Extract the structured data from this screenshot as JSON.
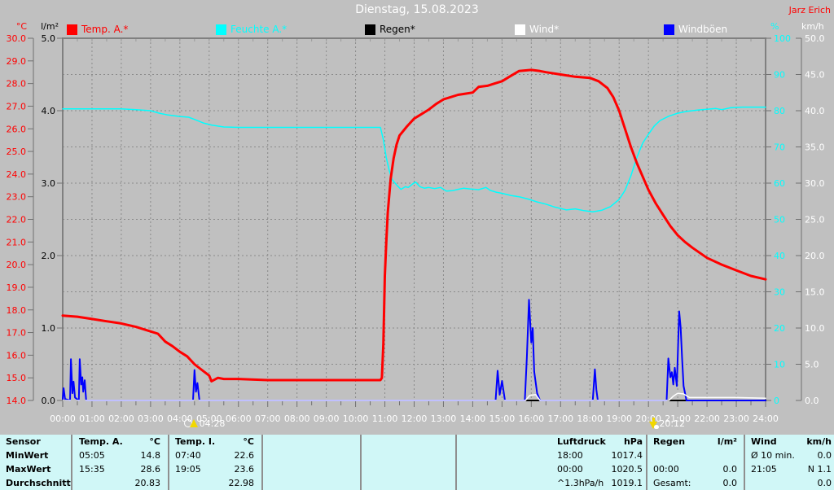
{
  "header": {
    "title": "Dienstag, 15.08.2023",
    "station": "Jarz Erich"
  },
  "legend": {
    "items": [
      {
        "label": "Temp. A.*",
        "swatch_color": "#ff0000",
        "label_color": "#ff0000"
      },
      {
        "label": "Feuchte A.*",
        "swatch_color": "#00ffff",
        "label_color": "#00ffff"
      },
      {
        "label": "Regen*",
        "swatch_color": "#000000",
        "label_color": "#000000"
      },
      {
        "label": "Wind*",
        "swatch_color": "#ffffff",
        "label_color": "#ffffff"
      },
      {
        "label": "Windböen",
        "swatch_color": "#0000ff",
        "label_color": "#ffffff"
      }
    ]
  },
  "chart_data": {
    "type": "line",
    "title": "Dienstag, 15.08.2023",
    "x_unit": "hour_of_day",
    "x_range": [
      0,
      24
    ],
    "grid": {
      "horizontal_divisions": 10,
      "vertical_step_hours": 1,
      "style": "dashed"
    },
    "legend_position": "top",
    "x_tick_labels": [
      "00:00",
      "01:00",
      "02:00",
      "03:00",
      "04:00",
      "05:00",
      "06:00",
      "07:00",
      "08:00",
      "09:00",
      "10:00",
      "11:00",
      "12:00",
      "13:00",
      "14:00",
      "15:00",
      "16:00",
      "17:00",
      "18:00",
      "19:00",
      "20:00",
      "21:00",
      "22:00",
      "23:00",
      "24:00"
    ],
    "axes": {
      "temp": {
        "unit": "°C",
        "color": "#ff0000",
        "min": 14,
        "max": 30,
        "tick_labels": [
          "30.0",
          "29.0",
          "28.0",
          "27.0",
          "26.0",
          "25.0",
          "24.0",
          "23.0",
          "22.0",
          "21.0",
          "20.0",
          "19.0",
          "18.0",
          "17.0",
          "16.0",
          "15.0",
          "14.0"
        ]
      },
      "rain": {
        "unit": "l/m²",
        "color": "#000000",
        "min": 0,
        "max": 5,
        "tick_labels": [
          "5.0",
          "4.0",
          "3.0",
          "2.0",
          "1.0",
          "0.0"
        ]
      },
      "humidity": {
        "unit": "%",
        "color": "#00ffff",
        "min": 0,
        "max": 100,
        "tick_labels": [
          "100",
          "90",
          "80",
          "70",
          "60",
          "50",
          "40",
          "30",
          "20",
          "10",
          "0"
        ]
      },
      "wind": {
        "unit": "km/h",
        "color": "#ffffff",
        "min": 0,
        "max": 50,
        "tick_labels": [
          "50.0",
          "45.0",
          "40.0",
          "35.0",
          "30.0",
          "25.0",
          "20.0",
          "15.0",
          "10.0",
          "5.0",
          "0.0"
        ]
      }
    },
    "sun": {
      "sunrise": {
        "time": "04:28",
        "hour": 4.467
      },
      "sunset": {
        "time": "20:12",
        "hour": 20.2
      }
    },
    "series": [
      {
        "name": "Temp. A.*",
        "axis": "temp",
        "unit": "°C",
        "color": "#ff0000",
        "points": [
          [
            0,
            17.75
          ],
          [
            0.5,
            17.7
          ],
          [
            1,
            17.6
          ],
          [
            1.5,
            17.5
          ],
          [
            2,
            17.4
          ],
          [
            2.5,
            17.25
          ],
          [
            3,
            17.05
          ],
          [
            3.25,
            16.95
          ],
          [
            3.5,
            16.6
          ],
          [
            3.75,
            16.4
          ],
          [
            4,
            16.15
          ],
          [
            4.25,
            15.95
          ],
          [
            4.5,
            15.6
          ],
          [
            4.75,
            15.35
          ],
          [
            5,
            15.1
          ],
          [
            5.08,
            14.85
          ],
          [
            5.3,
            15.0
          ],
          [
            5.5,
            14.95
          ],
          [
            6,
            14.95
          ],
          [
            7,
            14.9
          ],
          [
            8,
            14.9
          ],
          [
            9,
            14.9
          ],
          [
            10,
            14.9
          ],
          [
            10.5,
            14.9
          ],
          [
            10.85,
            14.9
          ],
          [
            10.9,
            15.0
          ],
          [
            10.95,
            16.5
          ],
          [
            11.0,
            19.5
          ],
          [
            11.05,
            21.0
          ],
          [
            11.1,
            22.3
          ],
          [
            11.2,
            23.8
          ],
          [
            11.3,
            24.7
          ],
          [
            11.4,
            25.3
          ],
          [
            11.5,
            25.7
          ],
          [
            11.75,
            26.1
          ],
          [
            12,
            26.45
          ],
          [
            12.25,
            26.65
          ],
          [
            12.5,
            26.85
          ],
          [
            12.75,
            27.1
          ],
          [
            13,
            27.3
          ],
          [
            13.25,
            27.4
          ],
          [
            13.5,
            27.5
          ],
          [
            13.75,
            27.55
          ],
          [
            14,
            27.6
          ],
          [
            14.2,
            27.85
          ],
          [
            14.5,
            27.9
          ],
          [
            14.75,
            28.0
          ],
          [
            15,
            28.1
          ],
          [
            15.25,
            28.3
          ],
          [
            15.58,
            28.55
          ],
          [
            16,
            28.6
          ],
          [
            16.3,
            28.55
          ],
          [
            16.5,
            28.5
          ],
          [
            17,
            28.4
          ],
          [
            17.5,
            28.3
          ],
          [
            18,
            28.25
          ],
          [
            18.3,
            28.1
          ],
          [
            18.6,
            27.8
          ],
          [
            18.8,
            27.4
          ],
          [
            19,
            26.8
          ],
          [
            19.2,
            26.0
          ],
          [
            19.4,
            25.2
          ],
          [
            19.6,
            24.5
          ],
          [
            19.8,
            23.9
          ],
          [
            20,
            23.3
          ],
          [
            20.25,
            22.7
          ],
          [
            20.5,
            22.2
          ],
          [
            20.75,
            21.7
          ],
          [
            21,
            21.3
          ],
          [
            21.25,
            21.0
          ],
          [
            21.5,
            20.75
          ],
          [
            22,
            20.3
          ],
          [
            22.5,
            20.0
          ],
          [
            23,
            19.75
          ],
          [
            23.5,
            19.5
          ],
          [
            24,
            19.35
          ]
        ]
      },
      {
        "name": "Feuchte A.*",
        "axis": "humidity",
        "unit": "%",
        "color": "#00ffff",
        "points": [
          [
            0,
            80.5
          ],
          [
            1,
            80.5
          ],
          [
            2,
            80.5
          ],
          [
            2.5,
            80.3
          ],
          [
            3,
            80
          ],
          [
            3.3,
            79.3
          ],
          [
            3.6,
            78.8
          ],
          [
            4,
            78.4
          ],
          [
            4.3,
            78.2
          ],
          [
            4.5,
            77.6
          ],
          [
            4.8,
            76.6
          ],
          [
            5.1,
            76.0
          ],
          [
            5.5,
            75.5
          ],
          [
            6,
            75.4
          ],
          [
            8,
            75.4
          ],
          [
            10,
            75.4
          ],
          [
            10.85,
            75.4
          ],
          [
            10.95,
            72
          ],
          [
            11.05,
            67
          ],
          [
            11.15,
            63.5
          ],
          [
            11.25,
            61
          ],
          [
            11.4,
            59.5
          ],
          [
            11.55,
            58.3
          ],
          [
            11.7,
            59
          ],
          [
            11.8,
            58.8
          ],
          [
            11.95,
            59.8
          ],
          [
            12.05,
            60.3
          ],
          [
            12.2,
            59
          ],
          [
            12.35,
            58.6
          ],
          [
            12.5,
            58.8
          ],
          [
            12.7,
            58.5
          ],
          [
            12.9,
            58.8
          ],
          [
            13.1,
            57.8
          ],
          [
            13.3,
            57.9
          ],
          [
            13.5,
            58.3
          ],
          [
            13.7,
            58.6
          ],
          [
            13.9,
            58.4
          ],
          [
            14.2,
            58.2
          ],
          [
            14.45,
            58.8
          ],
          [
            14.6,
            58
          ],
          [
            14.8,
            57.5
          ],
          [
            15,
            57.2
          ],
          [
            15.3,
            56.6
          ],
          [
            15.6,
            56.2
          ],
          [
            15.9,
            55.6
          ],
          [
            16.2,
            54.8
          ],
          [
            16.5,
            54.2
          ],
          [
            16.8,
            53.4
          ],
          [
            17,
            53
          ],
          [
            17.2,
            52.6
          ],
          [
            17.5,
            52.9
          ],
          [
            17.8,
            52.4
          ],
          [
            18.1,
            52.1
          ],
          [
            18.4,
            52.5
          ],
          [
            18.7,
            53.5
          ],
          [
            19,
            55.5
          ],
          [
            19.2,
            58
          ],
          [
            19.4,
            62
          ],
          [
            19.6,
            67
          ],
          [
            19.8,
            71
          ],
          [
            20,
            73.5
          ],
          [
            20.2,
            75.8
          ],
          [
            20.4,
            77.3
          ],
          [
            20.7,
            78.5
          ],
          [
            21,
            79.3
          ],
          [
            21.3,
            79.8
          ],
          [
            21.7,
            80.2
          ],
          [
            22,
            80.4
          ],
          [
            22.3,
            80.6
          ],
          [
            22.5,
            80.3
          ],
          [
            22.8,
            80.8
          ],
          [
            23.2,
            81
          ],
          [
            23.6,
            81
          ],
          [
            24,
            81
          ]
        ]
      },
      {
        "name": "Regen*",
        "axis": "rain",
        "unit": "l/m²",
        "color": "#000000",
        "points": [
          [
            0,
            0
          ],
          [
            24,
            0
          ]
        ]
      },
      {
        "name": "Wind*",
        "axis": "wind",
        "unit": "km/h",
        "color": "#ffffff",
        "points": [
          [
            0,
            0
          ],
          [
            15.8,
            0
          ],
          [
            15.95,
            0.7
          ],
          [
            16.15,
            0.8
          ],
          [
            16.3,
            0
          ],
          [
            20.7,
            0
          ],
          [
            20.85,
            0.6
          ],
          [
            21.0,
            1.0
          ],
          [
            21.2,
            0.9
          ],
          [
            21.4,
            0.4
          ],
          [
            22,
            0.4
          ],
          [
            23,
            0.4
          ],
          [
            24,
            0.3
          ]
        ]
      },
      {
        "name": "Windböen",
        "axis": "wind",
        "unit": "km/h",
        "color": "#0000ff",
        "points": [
          [
            0,
            0.2
          ],
          [
            0.03,
            1.7
          ],
          [
            0.08,
            0.2
          ],
          [
            0.25,
            0
          ],
          [
            0.28,
            5.7
          ],
          [
            0.33,
            1.0
          ],
          [
            0.37,
            2.6
          ],
          [
            0.42,
            0.4
          ],
          [
            0.55,
            0
          ],
          [
            0.58,
            5.7
          ],
          [
            0.63,
            2.2
          ],
          [
            0.67,
            3.2
          ],
          [
            0.7,
            1.2
          ],
          [
            0.75,
            2.8
          ],
          [
            0.8,
            0
          ],
          [
            4.45,
            0
          ],
          [
            4.5,
            4.2
          ],
          [
            4.55,
            1.2
          ],
          [
            4.6,
            2.4
          ],
          [
            4.67,
            0
          ],
          [
            14.78,
            0
          ],
          [
            14.85,
            4.1
          ],
          [
            14.92,
            0.8
          ],
          [
            15.0,
            2.7
          ],
          [
            15.1,
            0
          ],
          [
            15.78,
            0
          ],
          [
            15.85,
            6
          ],
          [
            15.92,
            13.9
          ],
          [
            16.0,
            8
          ],
          [
            16.05,
            10
          ],
          [
            16.1,
            4
          ],
          [
            16.2,
            1
          ],
          [
            16.3,
            0
          ],
          [
            18.1,
            0
          ],
          [
            18.17,
            4.3
          ],
          [
            18.22,
            1.5
          ],
          [
            18.27,
            0
          ],
          [
            20.62,
            0
          ],
          [
            20.68,
            5.8
          ],
          [
            20.75,
            3.2
          ],
          [
            20.8,
            3.9
          ],
          [
            20.85,
            2.2
          ],
          [
            20.9,
            4.5
          ],
          [
            20.97,
            2.0
          ],
          [
            21.05,
            12.3
          ],
          [
            21.1,
            10.1
          ],
          [
            21.15,
            5.8
          ],
          [
            21.2,
            2
          ],
          [
            21.3,
            0
          ],
          [
            24,
            0
          ]
        ]
      }
    ]
  },
  "table": {
    "row_labels": [
      "Sensor",
      "MinWert",
      "MaxWert",
      "Durchschnitt"
    ],
    "columns": [
      {
        "name": "Temp. A.",
        "unit": "°C",
        "rows": [
          [
            "05:05",
            "14.8"
          ],
          [
            "15:35",
            "28.6"
          ],
          [
            "",
            "20.83"
          ]
        ]
      },
      {
        "name": "Temp. I.",
        "unit": "°C",
        "rows": [
          [
            "07:40",
            "22.6"
          ],
          [
            "19:05",
            "23.6"
          ],
          [
            "",
            "22.98"
          ]
        ]
      },
      {
        "name": "",
        "unit": "",
        "rows": [
          [
            "",
            ""
          ],
          [
            "",
            ""
          ],
          [
            "",
            ""
          ]
        ]
      },
      {
        "name": "",
        "unit": "",
        "rows": [
          [
            "",
            ""
          ],
          [
            "",
            ""
          ],
          [
            "",
            ""
          ]
        ]
      },
      {
        "name": "Luftdruck",
        "unit": "hPa",
        "rows": [
          [
            "18:00",
            "1017.4"
          ],
          [
            "00:00",
            "1020.5"
          ],
          [
            "^1.3hPa/h",
            "1019.1"
          ]
        ]
      },
      {
        "name": "Regen",
        "unit": "l/m²",
        "rows": [
          [
            "",
            ""
          ],
          [
            "00:00",
            "0.0"
          ],
          [
            "Gesamt:",
            "0.0"
          ]
        ]
      },
      {
        "name": "Wind",
        "unit": "km/h",
        "rows": [
          [
            "Ø 10 min.",
            "0.0"
          ],
          [
            "21:05",
            "N 1.1"
          ],
          [
            "",
            "0.0"
          ]
        ]
      }
    ]
  }
}
